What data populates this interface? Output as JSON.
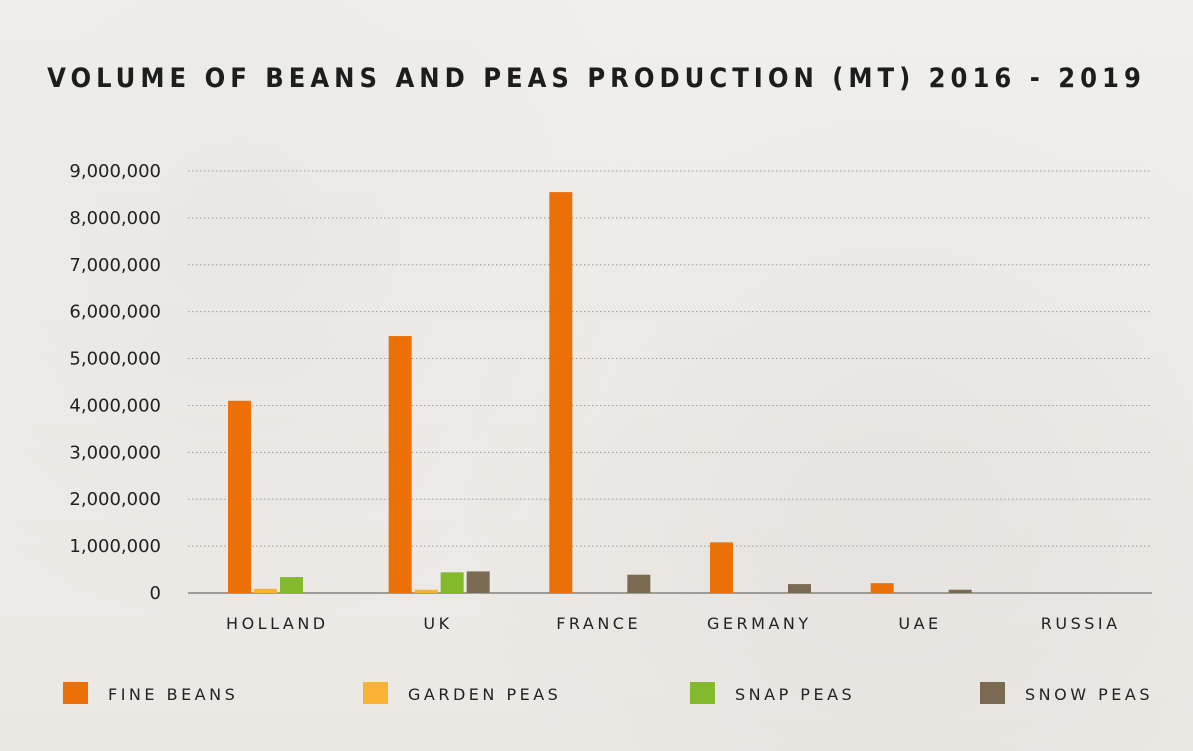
{
  "chart_data": {
    "type": "bar",
    "title": "VOLUME OF BEANS AND PEAS PRODUCTION (MT) 2016 - 2019",
    "xlabel": "",
    "ylabel": "",
    "ylim": [
      0,
      9000000
    ],
    "y_ticks": [
      "0",
      "1,000,000",
      "2,000,000",
      "3,000,000",
      "4,000,000",
      "5,000,000",
      "6,000,000",
      "7,000,000",
      "8,000,000",
      "9,000,000"
    ],
    "grid": true,
    "legend_position": "bottom",
    "categories": [
      "HOLLAND",
      "UK",
      "FRANCE",
      "GERMANY",
      "UAE",
      "RUSSIA"
    ],
    "series": [
      {
        "name": "FINE BEANS",
        "color": "#ec7008",
        "values": [
          4100000,
          5480000,
          8550000,
          1080000,
          210000,
          0
        ]
      },
      {
        "name": "GARDEN PEAS",
        "color": "#f9b233",
        "values": [
          90000,
          70000,
          0,
          0,
          0,
          0
        ]
      },
      {
        "name": "SNAP PEAS",
        "color": "#82b92d",
        "values": [
          340000,
          440000,
          0,
          0,
          0,
          0
        ]
      },
      {
        "name": "SNOW PEAS",
        "color": "#7a6a52",
        "values": [
          0,
          460000,
          390000,
          190000,
          70000,
          0
        ]
      }
    ]
  }
}
